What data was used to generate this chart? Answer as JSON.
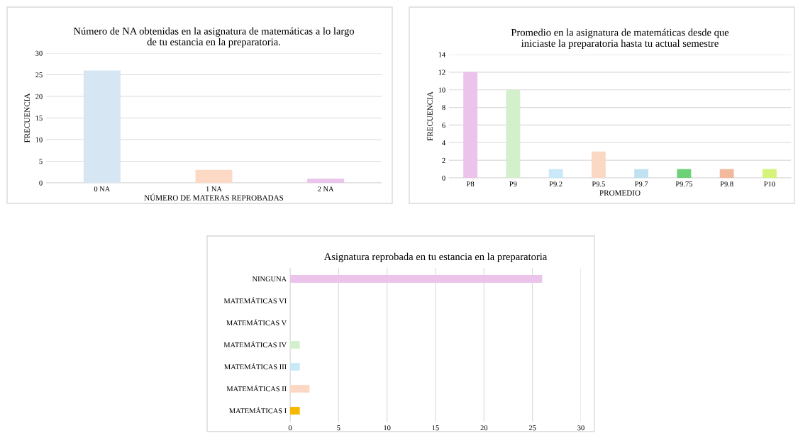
{
  "chart_data": [
    {
      "type": "bar",
      "title": "Número de NA obtenidas en la asignatura de matemáticas a lo largo\nde tu estancia en la preparatoria.",
      "xlabel": "NÚMERO DE MATERAS REPROBADAS",
      "ylabel": "FRECUENCIA",
      "categories": [
        "0 NA",
        "1 NA",
        "2 NA"
      ],
      "values": [
        26,
        3,
        1
      ],
      "colors": [
        "#d6e6f3",
        "#fbd9c4",
        "#ebc6ec"
      ],
      "ylim": [
        0,
        30
      ],
      "yticks": [
        0,
        5,
        10,
        15,
        20,
        25,
        30
      ],
      "grid": "y"
    },
    {
      "type": "bar",
      "title": "Promedio en la asignatura de matemáticas desde que\niniciaste la preparatoria hasta tu actual semestre",
      "xlabel": "PROMEDIO",
      "ylabel": "FRECUENCIA",
      "categories": [
        "P8",
        "P9",
        "P9.2",
        "P9.5",
        "P9.7",
        "P9.75",
        "P9.8",
        "P10"
      ],
      "values": [
        12,
        10,
        1,
        3,
        1,
        1,
        1,
        1
      ],
      "colors": [
        "#ebc3eb",
        "#d3efcc",
        "#c9e9f8",
        "#fbd8c4",
        "#c0e2f0",
        "#6dd177",
        "#f2b99c",
        "#d6f47a"
      ],
      "ylim": [
        0,
        14
      ],
      "yticks": [
        0,
        2,
        4,
        6,
        8,
        10,
        12,
        14
      ],
      "grid": "y"
    },
    {
      "type": "bar",
      "orientation": "horizontal",
      "title": "Asignatura reprobada en tu estancia en la preparatoria",
      "categories": [
        "NINGUNA",
        "MATEMÁTICAS VI",
        "MATEMÁTICAS V",
        "MATEMÁTICAS IV",
        "MATEMÁTICAS III",
        "MATEMÁTICAS II",
        "MATEMÁTICAS I"
      ],
      "values": [
        26,
        0,
        0,
        1,
        1,
        2,
        1
      ],
      "colors": [
        "#ebc3eb",
        "#d0d0d0",
        "#d0d0d0",
        "#d3efcc",
        "#c9e9f8",
        "#fbd8c4",
        "#f5b800"
      ],
      "xlim": [
        0,
        30
      ],
      "xticks": [
        0,
        5,
        10,
        15,
        20,
        25,
        30
      ],
      "grid": "x"
    }
  ]
}
